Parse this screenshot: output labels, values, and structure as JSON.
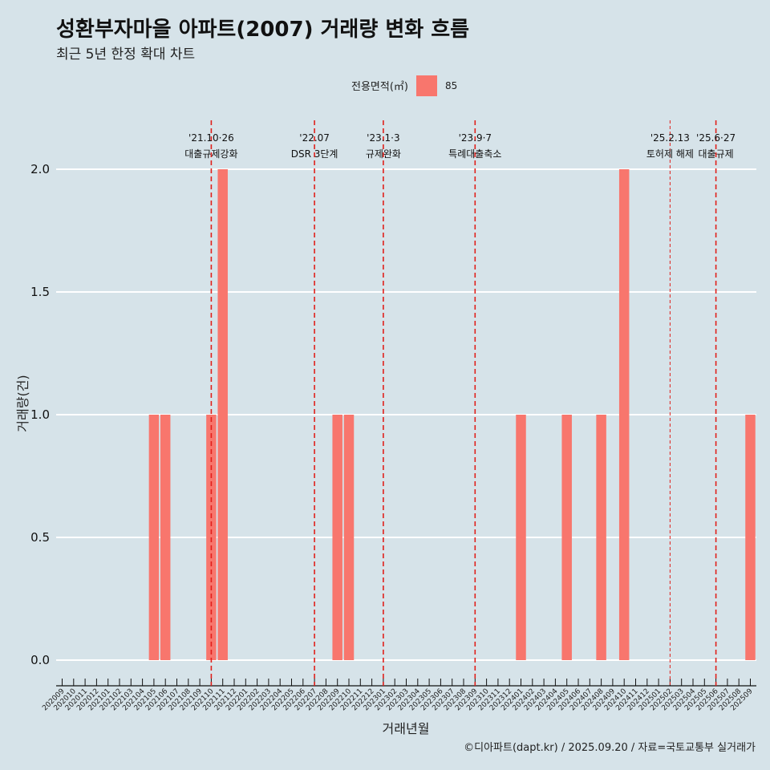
{
  "header": {
    "title": "성환부자마을 아파트(2007) 거래량 변화 흐름",
    "subtitle": "최근 5년 한정 확대 차트"
  },
  "legend": {
    "title": "전용면적(㎡)",
    "items": [
      {
        "label": "85",
        "color": "#f8766d"
      }
    ]
  },
  "caption": "©디아파트(dapt.kr) / 2025.09.20 / 자료=국토교통부 실거래가",
  "chart_data": {
    "type": "bar",
    "title": "성환부자마을 아파트(2007) 거래량 변화 흐름",
    "subtitle": "최근 5년 한정 확대 차트",
    "xlabel": "거래년월",
    "ylabel": "거래량(건)",
    "ylim": [
      0,
      2.0
    ],
    "yticks": [
      "0.0",
      "0.5",
      "1.0",
      "1.5",
      "2.0"
    ],
    "categories": [
      "202009",
      "202010",
      "202011",
      "202012",
      "202101",
      "202102",
      "202103",
      "202104",
      "202105",
      "202106",
      "202107",
      "202108",
      "202109",
      "202110",
      "202111",
      "202112",
      "202201",
      "202202",
      "202203",
      "202204",
      "202205",
      "202206",
      "202207",
      "202208",
      "202209",
      "202210",
      "202211",
      "202212",
      "202301",
      "202302",
      "202303",
      "202304",
      "202305",
      "202306",
      "202307",
      "202308",
      "202309",
      "202310",
      "202311",
      "202312",
      "202401",
      "202402",
      "202403",
      "202404",
      "202405",
      "202406",
      "202407",
      "202408",
      "202409",
      "202410",
      "202411",
      "202412",
      "202501",
      "202502",
      "202503",
      "202504",
      "202505",
      "202506",
      "202507",
      "202508",
      "202509"
    ],
    "series": [
      {
        "name": "85",
        "color": "#f8766d",
        "values": [
          0,
          0,
          0,
          0,
          0,
          0,
          0,
          0,
          1,
          1,
          0,
          0,
          0,
          1,
          2,
          0,
          0,
          0,
          0,
          0,
          0,
          0,
          0,
          0,
          1,
          1,
          0,
          0,
          0,
          0,
          0,
          0,
          0,
          0,
          0,
          0,
          0,
          0,
          0,
          0,
          1,
          0,
          0,
          0,
          1,
          0,
          0,
          1,
          0,
          2,
          0,
          0,
          0,
          0,
          0,
          0,
          0,
          0,
          0,
          0,
          1
        ]
      }
    ],
    "annotations": [
      {
        "category": "202110",
        "line1": "'21.10·26",
        "line2": "대출규제강화",
        "style": "dashed"
      },
      {
        "category": "202207",
        "line1": "'22.07",
        "line2": "DSR 3단계",
        "style": "dashed"
      },
      {
        "category": "202301",
        "line1": "'23.1·3",
        "line2": "규제완화",
        "style": "dashed"
      },
      {
        "category": "202309",
        "line1": "'23.9·7",
        "line2": "특례대출축소",
        "style": "dashed"
      },
      {
        "category": "202502",
        "line1": "'25.2.13",
        "line2": "토허제 해제",
        "style": "thin"
      },
      {
        "category": "202506",
        "line1": "'25.6·27",
        "line2": "대출규제",
        "style": "dashed"
      }
    ],
    "grid": true,
    "legend_position": "top"
  }
}
